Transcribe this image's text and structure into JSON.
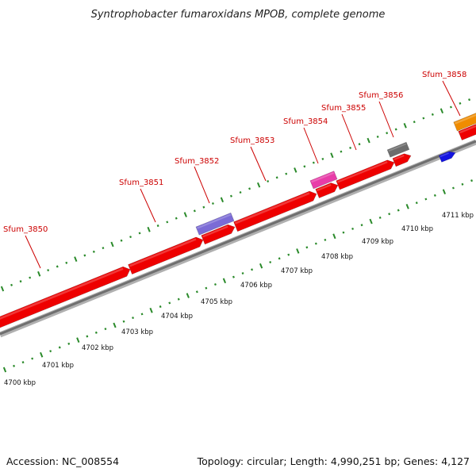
{
  "title": "Syntrophobacter fumaroxidans MPOB, complete genome",
  "footer": {
    "accession": "Accession: NC_008554",
    "summary": "Topology: circular; Length: 4,990,251 bp; Genes: 4,127"
  },
  "colors": {
    "backbone": "#808080",
    "ruler_tick": "#2a8a2a",
    "cds": "#ee0000",
    "label": "#cc0000"
  },
  "scale": {
    "unit": "kbp",
    "labels": [
      "4700 kbp",
      "4701 kbp",
      "4702 kbp",
      "4703 kbp",
      "4704 kbp",
      "4705 kbp",
      "4706 kbp",
      "4707 kbp",
      "4708 kbp",
      "4709 kbp",
      "4710 kbp",
      "4711 kbp"
    ]
  },
  "gene_labels": [
    "Sfum_3850",
    "Sfum_3851",
    "Sfum_3852",
    "Sfum_3853",
    "Sfum_3854",
    "Sfum_3855",
    "Sfum_3856",
    "Sfum_3858"
  ]
}
